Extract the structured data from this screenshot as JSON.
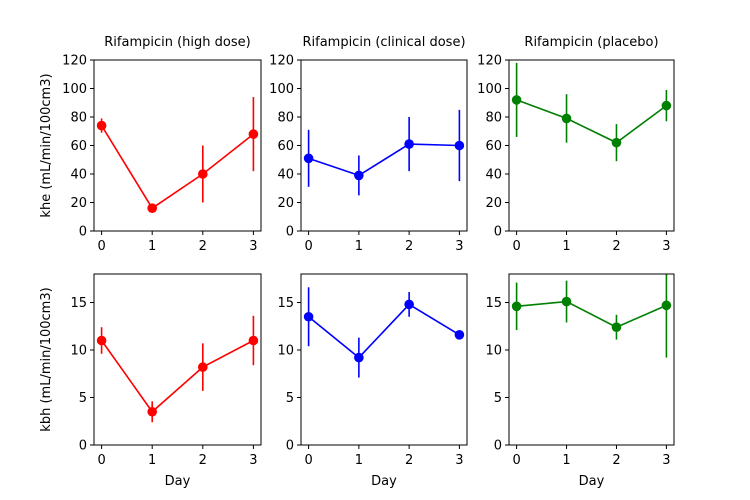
{
  "chart_data": [
    {
      "type": "line",
      "title": "Rifampicin (high dose)",
      "xlabel": "",
      "ylabel": "khe (mL/min/100cm3)",
      "x": [
        0,
        1,
        2,
        3
      ],
      "xticks": [
        "0",
        "1",
        "2",
        "3"
      ],
      "ylim": [
        0,
        120
      ],
      "yticks": [
        "0",
        "20",
        "40",
        "60",
        "80",
        "100",
        "120"
      ],
      "color": "#ff0000",
      "series": [
        {
          "values": [
            74,
            16,
            40,
            68
          ],
          "err": [
            5,
            3,
            20,
            26
          ]
        }
      ]
    },
    {
      "type": "line",
      "title": "Rifampicin (clinical dose)",
      "xlabel": "",
      "ylabel": "",
      "x": [
        0,
        1,
        2,
        3
      ],
      "xticks": [
        "0",
        "1",
        "2",
        "3"
      ],
      "ylim": [
        0,
        120
      ],
      "yticks": [
        "0",
        "20",
        "40",
        "60",
        "80",
        "100",
        "120"
      ],
      "color": "#0000ff",
      "series": [
        {
          "values": [
            51,
            39,
            61,
            60
          ],
          "err": [
            20,
            14,
            19,
            25
          ]
        }
      ]
    },
    {
      "type": "line",
      "title": "Rifampicin (placebo)",
      "xlabel": "",
      "ylabel": "",
      "x": [
        0,
        1,
        2,
        3
      ],
      "xticks": [
        "0",
        "1",
        "2",
        "3"
      ],
      "ylim": [
        0,
        120
      ],
      "yticks": [
        "0",
        "20",
        "40",
        "60",
        "80",
        "100",
        "120"
      ],
      "color": "#008000",
      "series": [
        {
          "values": [
            92,
            79,
            62,
            88
          ],
          "err": [
            26,
            17,
            13,
            11
          ]
        }
      ]
    },
    {
      "type": "line",
      "title": "",
      "xlabel": "Day",
      "ylabel": "kbh (mL/min/100cm3)",
      "x": [
        0,
        1,
        2,
        3
      ],
      "xticks": [
        "0",
        "1",
        "2",
        "3"
      ],
      "ylim": [
        0,
        18
      ],
      "yticks": [
        "0",
        "5",
        "10",
        "15"
      ],
      "color": "#ff0000",
      "series": [
        {
          "values": [
            11,
            3.5,
            8.2,
            11
          ],
          "err": [
            1.4,
            1.1,
            2.5,
            2.6
          ]
        }
      ]
    },
    {
      "type": "line",
      "title": "",
      "xlabel": "Day",
      "ylabel": "",
      "x": [
        0,
        1,
        2,
        3
      ],
      "xticks": [
        "0",
        "1",
        "2",
        "3"
      ],
      "ylim": [
        0,
        18
      ],
      "yticks": [
        "0",
        "5",
        "10",
        "15"
      ],
      "color": "#0000ff",
      "series": [
        {
          "values": [
            13.5,
            9.2,
            14.8,
            11.6
          ],
          "err": [
            3.1,
            2.1,
            1.3,
            0.3
          ]
        }
      ]
    },
    {
      "type": "line",
      "title": "",
      "xlabel": "Day",
      "ylabel": "",
      "x": [
        0,
        1,
        2,
        3
      ],
      "xticks": [
        "0",
        "1",
        "2",
        "3"
      ],
      "ylim": [
        0,
        18
      ],
      "yticks": [
        "0",
        "5",
        "10",
        "15"
      ],
      "color": "#008000",
      "series": [
        {
          "values": [
            14.6,
            15.1,
            12.4,
            14.7
          ],
          "err": [
            2.5,
            2.2,
            1.3,
            5.5
          ]
        }
      ]
    }
  ]
}
